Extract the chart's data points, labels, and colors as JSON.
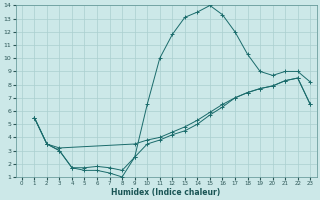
{
  "xlabel": "Humidex (Indice chaleur)",
  "bg_color": "#cce8e8",
  "grid_color": "#aacfcf",
  "line_color": "#1a6b6b",
  "xlim": [
    -0.5,
    23.5
  ],
  "ylim": [
    1,
    14
  ],
  "xticks": [
    0,
    1,
    2,
    3,
    4,
    5,
    6,
    7,
    8,
    9,
    10,
    11,
    12,
    13,
    14,
    15,
    16,
    17,
    18,
    19,
    20,
    21,
    22,
    23
  ],
  "yticks": [
    1,
    2,
    3,
    4,
    5,
    6,
    7,
    8,
    9,
    10,
    11,
    12,
    13,
    14
  ],
  "line1_x": [
    1,
    2,
    3,
    4,
    5,
    6,
    7,
    8,
    9,
    10,
    11,
    12,
    13,
    14,
    15,
    16,
    17,
    18,
    19,
    20,
    21,
    22,
    23
  ],
  "line1_y": [
    5.5,
    3.5,
    3.0,
    1.7,
    1.5,
    1.5,
    1.3,
    1.0,
    2.5,
    6.5,
    10.0,
    11.8,
    13.1,
    13.5,
    14.0,
    13.3,
    12.0,
    10.3,
    9.0,
    8.7,
    9.0,
    9.0,
    8.2
  ],
  "line2_x": [
    1,
    2,
    3,
    9,
    10,
    11,
    12,
    13,
    14,
    15,
    16,
    17,
    18,
    19,
    20,
    21,
    22,
    23
  ],
  "line2_y": [
    5.5,
    3.5,
    3.2,
    3.5,
    3.8,
    4.0,
    4.4,
    4.8,
    5.3,
    5.9,
    6.5,
    7.0,
    7.4,
    7.7,
    7.9,
    8.3,
    8.5,
    6.5
  ],
  "line3_x": [
    1,
    2,
    3,
    4,
    5,
    6,
    7,
    8,
    9,
    10,
    11,
    12,
    13,
    14,
    15,
    16,
    17,
    18,
    19,
    20,
    21,
    22,
    23
  ],
  "line3_y": [
    5.5,
    3.5,
    3.0,
    1.7,
    1.7,
    1.8,
    1.7,
    1.5,
    2.5,
    3.5,
    3.8,
    4.2,
    4.5,
    5.0,
    5.7,
    6.3,
    7.0,
    7.4,
    7.7,
    7.9,
    8.3,
    8.5,
    6.5
  ]
}
